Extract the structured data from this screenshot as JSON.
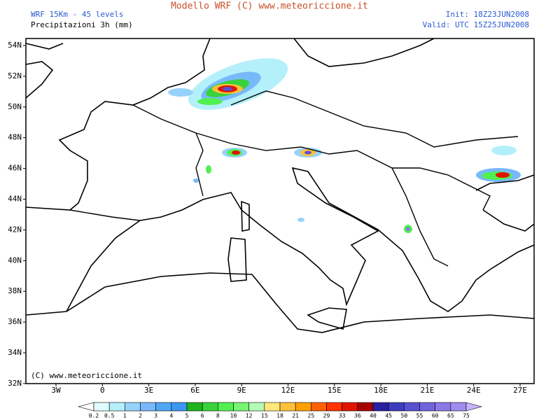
{
  "header": {
    "title": "Modello WRF (C) www.meteoriccione.it",
    "model": "WRF 15Km - 45 levels",
    "field": "Precipitazioni 3h (mm)",
    "init": "Init: 18Z23JUN2008",
    "valid": "Valid: UTC 15Z25JUN2008"
  },
  "map": {
    "lat_labels": [
      "54N",
      "52N",
      "50N",
      "48N",
      "46N",
      "44N",
      "42N",
      "40N",
      "38N",
      "36N",
      "34N",
      "32N"
    ],
    "lon_labels": [
      "3W",
      "0",
      "3E",
      "6E",
      "9E",
      "12E",
      "15E",
      "18E",
      "21E",
      "24E",
      "27E"
    ],
    "credit": "(C) www.meteoriccione.it"
  },
  "colorbar": {
    "levels": [
      0.2,
      0.5,
      1,
      2,
      3,
      4,
      5,
      6,
      8,
      10,
      12,
      15,
      18,
      21,
      25,
      29,
      33,
      36,
      40,
      45,
      50,
      55,
      60,
      65,
      75
    ],
    "colors": [
      "#e1fcfc",
      "#b4f0fa",
      "#96d2fa",
      "#78b9fa",
      "#50a5f5",
      "#3c97f5",
      "#1eb41e",
      "#37d23c",
      "#50f050",
      "#78f573",
      "#b4fab4",
      "#ffe878",
      "#ffc03c",
      "#ffa000",
      "#ff6000",
      "#ff3200",
      "#e11400",
      "#a50000",
      "#2820a0",
      "#3c3cbe",
      "#5a50d2",
      "#7264dc",
      "#8c78e6",
      "#a08cf0"
    ],
    "below_color": "#ffffff",
    "above_color": "#c8b4ff"
  }
}
